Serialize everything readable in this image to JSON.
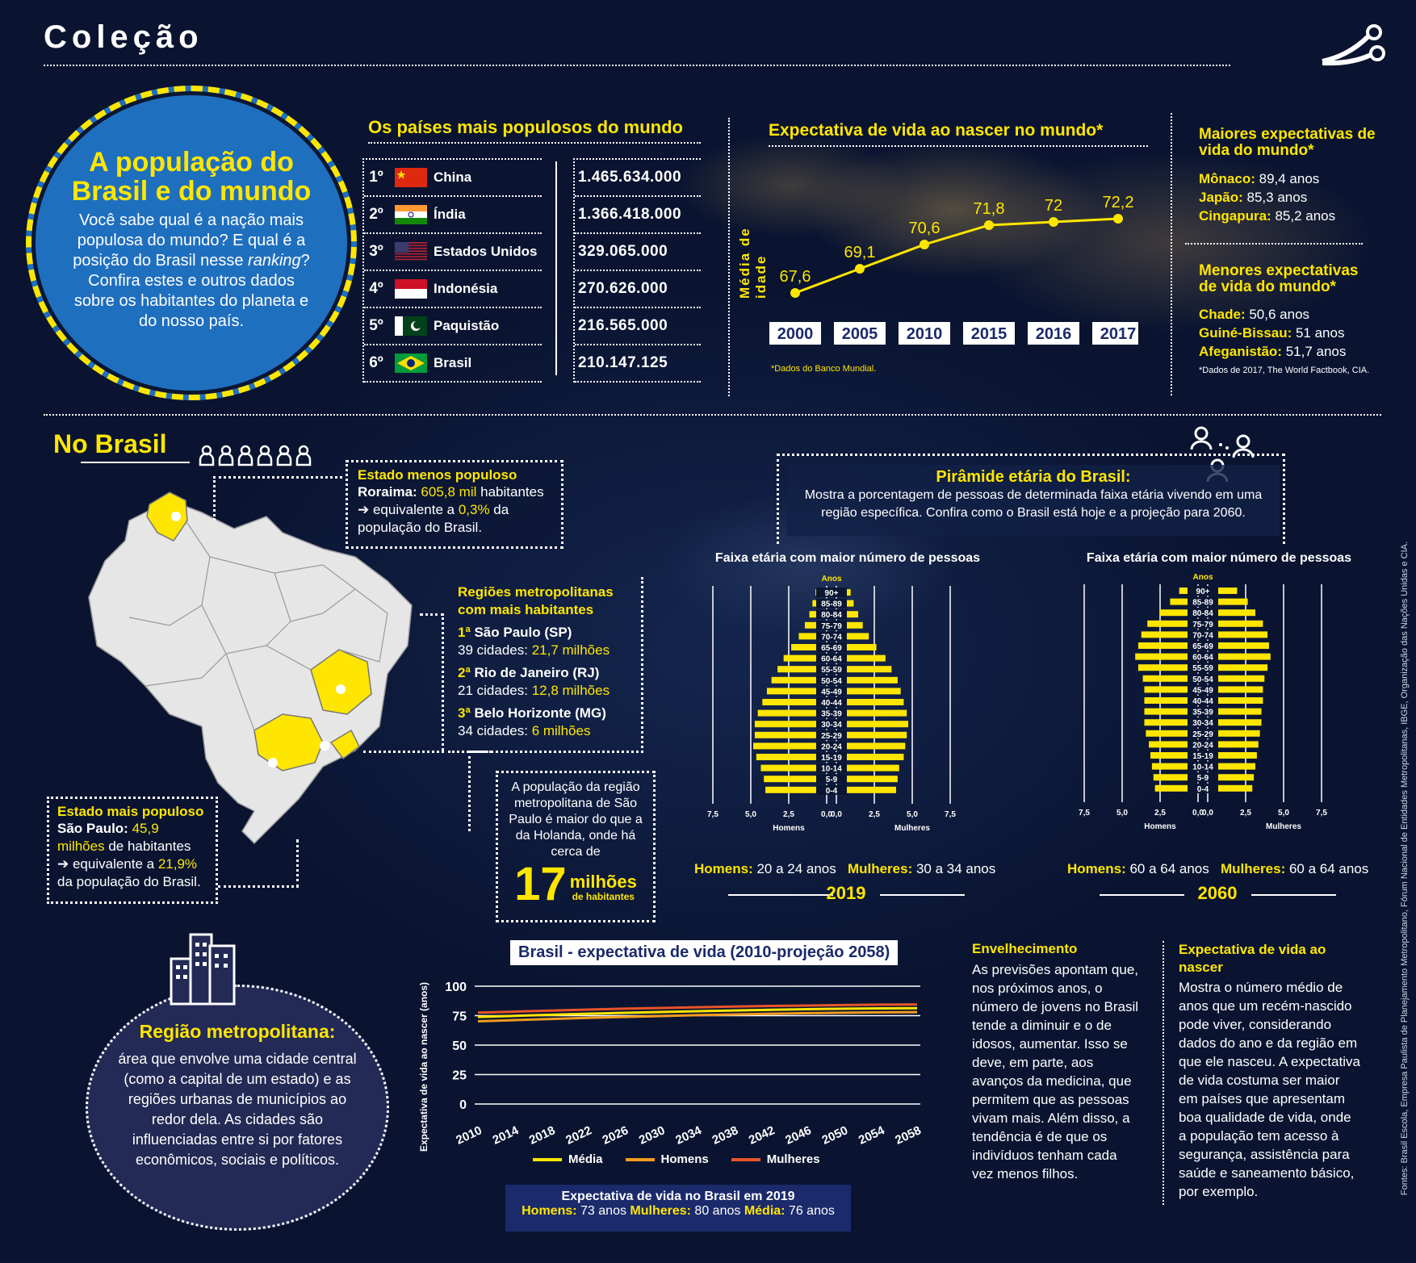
{
  "header": {
    "title": "Coleção"
  },
  "intro": {
    "title_line1": "A população do",
    "title_line2": "Brasil e do mundo",
    "text_part1": "Você sabe qual é a nação mais populosa do mundo? E qual é a posição do Brasil nesse ",
    "text_italic": "ranking",
    "text_part2": "? Confira estes e outros dados sobre os habitantes do planeta e do nosso país."
  },
  "populous": {
    "title": "Os países mais populosos do mundo",
    "rows": [
      {
        "rank": "1º",
        "country": "China",
        "value": "1.465.634.000",
        "flag": "china-flag"
      },
      {
        "rank": "2º",
        "country": "Índia",
        "value": "1.366.418.000",
        "flag": "india-flag"
      },
      {
        "rank": "3º",
        "country": "Estados Unidos",
        "value": "329.065.000",
        "flag": "usa-flag"
      },
      {
        "rank": "4º",
        "country": "Indonésia",
        "value": "270.626.000",
        "flag": "indonesia-flag"
      },
      {
        "rank": "5º",
        "country": "Paquistão",
        "value": "216.565.000",
        "flag": "pakistan-flag"
      },
      {
        "rank": "6º",
        "country": "Brasil",
        "value": "210.147.125",
        "flag": "brazil-flag"
      }
    ]
  },
  "life_world": {
    "title": "Expectativa de vida ao nascer no mundo*",
    "ylabel": "Média de idade",
    "footnote": "*Dados do Banco Mundial."
  },
  "extremes": {
    "max_title": "Maiores expectativas de vida do mundo*",
    "max_items": [
      {
        "country": "Mônaco:",
        "value": "89,4 anos"
      },
      {
        "country": "Japão:",
        "value": "85,3 anos"
      },
      {
        "country": "Cingapura:",
        "value": "85,2 anos"
      }
    ],
    "min_title": "Menores expectativas de vida do mundo*",
    "min_items": [
      {
        "country": "Chade:",
        "value": "50,6 anos"
      },
      {
        "country": "Guiné-Bissau:",
        "value": "51 anos"
      },
      {
        "country": "Afeganistão:",
        "value": "51,7 anos"
      }
    ],
    "footnote": "*Dados de 2017, The World Factbook, CIA."
  },
  "brasil": {
    "title": "No Brasil",
    "least": {
      "title": "Estado menos populoso",
      "state": "Roraima:",
      "value": "605,8 mil",
      "text1": " habitantes",
      "text2": "➔ equivalente a ",
      "pct": "0,3%",
      "text3": " da",
      "text4": "população do Brasil."
    },
    "most": {
      "title": "Estado mais populoso",
      "state": "São Paulo:",
      "value1": "45,9",
      "value2": "milhões",
      "text1": " de habitantes",
      "text2": "➔ equivalente a ",
      "pct": "21,9%",
      "text3": "da população do Brasil."
    },
    "metro": {
      "title_line1": "Regiões metropolitanas",
      "title_line2": "com mais habitantes",
      "items": [
        {
          "rank": "1ª",
          "name": " São Paulo (SP)",
          "cities": " 39 cidades: ",
          "pop": "21,7 milhões"
        },
        {
          "rank": "2ª",
          "name": " Rio de Janeiro (RJ)",
          "cities": "21 cidades: ",
          "pop": "12,8 milhões"
        },
        {
          "rank": "3ª",
          "name": " Belo Horizonte (MG)",
          "cities": "34 cidades: ",
          "pop": "6 milhões"
        }
      ]
    },
    "sp_note": {
      "text": "A população da região metropolitana de São Paulo é maior do que a da Holanda, onde há cerca de",
      "big": "17",
      "unit": "milhões",
      "unit2": "de habitantes"
    }
  },
  "metro_def": {
    "title": "Região metropolitana:",
    "text": "área que envolve uma cidade central (como a capital de um estado) e as regiões urbanas de municípios ao redor dela. As cidades são influenciadas entre si por fatores econômicos, sociais e políticos."
  },
  "pyramid": {
    "title": "Pirâmide etária do Brasil:",
    "subtitle": "Mostra a porcentagem de pessoas de determinada faixa etária vivendo em uma região específica. Confira como o Brasil está hoje e a projeção para 2060.",
    "left": {
      "heading": "Faixa etária com maior número de pessoas",
      "year": "2019",
      "men_label": "Homens:",
      "men_value": " 20 a 24 anos",
      "women_label": "Mulheres:",
      "women_value": " 30 a 34 anos"
    },
    "right": {
      "heading": "Faixa etária com maior número de pessoas",
      "year": "2060",
      "men_label": "Homens:",
      "men_value": " 60 a 64 anos",
      "women_label": "Mulheres:",
      "women_value": " 60 a 64 anos"
    },
    "axis_top": "Anos",
    "men": "Homens",
    "women": "Mulheres"
  },
  "brasil_life": {
    "title": "Brasil - expectativa de vida (2010-projeção 2058)",
    "ylabel": "Expectativa de vida ao nascer (anos)",
    "legend": [
      "Média",
      "Homens",
      "Mulheres"
    ],
    "box_title": "Expectativa de vida no Brasil em 2019",
    "box_men_label": "Homens:",
    "box_men": " 73 anos ",
    "box_women_label": "Mulheres:",
    "box_women": " 80 anos ",
    "box_avg_label": "Média:",
    "box_avg": " 76 anos"
  },
  "aging": {
    "title": "Envelhecimento",
    "text": "As previsões apontam que, nos próximos anos, o número de jovens no Brasil tende a diminuir e o de idosos, aumentar. Isso se deve, em parte, aos avanços da medicina, que permitem que as pessoas vivam mais. Além disso, a tendência é de que os indivíduos tenham cada vez menos filhos."
  },
  "expect_def": {
    "title": "Expectativa de vida ao nascer",
    "text": "Mostra o número médio de anos que um recém-nascido pode viver, considerando dados do ano e da região em que ele nasceu. A expectativa de vida costuma ser maior em países que apresentam boa qualidade de vida, onde a população tem acesso à segurança, assistência para saúde e saneamento básico, por exemplo."
  },
  "sources": "Fontes: Brasil Escola, Empresa Paulista de Planejamento Metropolitano, Fórum Nacional de Entidades Metropolitanas, IBGE, Organização das Nações Unidas e CIA.",
  "colors": {
    "accent": "#ffe600",
    "circle": "#1f6fbf",
    "navy": "#1b2a6b",
    "orange": "#f39c1f",
    "red": "#e8542a"
  },
  "chart_data": [
    {
      "type": "line",
      "title": "Expectativa de vida ao nascer no mundo*",
      "ylabel": "Média de idade",
      "x": [
        "2000",
        "2005",
        "2010",
        "2015",
        "2016",
        "2017"
      ],
      "values": [
        67.6,
        69.1,
        70.6,
        71.8,
        72,
        72.2
      ],
      "value_labels": [
        "67,6",
        "69,1",
        "70,6",
        "71,8",
        "72",
        "72,2"
      ]
    },
    {
      "type": "line",
      "title": "Brasil - expectativa de vida (2010-projeção 2058)",
      "ylabel": "Expectativa de vida ao nascer (anos)",
      "ylim": [
        0,
        100
      ],
      "yticks": [
        "0",
        "25",
        "50",
        "75",
        "100"
      ],
      "x": [
        "2010",
        "2014",
        "2018",
        "2022",
        "2026",
        "2030",
        "2034",
        "2038",
        "2042",
        "2046",
        "2050",
        "2054",
        "2058"
      ],
      "series": [
        {
          "name": "Média",
          "color": "#ffe600",
          "values": [
            73.9,
            74.8,
            75.8,
            76.6,
            77.4,
            78.1,
            78.8,
            79.4,
            80.0,
            80.5,
            80.9,
            81.2,
            81.3
          ]
        },
        {
          "name": "Homens",
          "color": "#f39c1f",
          "values": [
            70.2,
            71.2,
            72.2,
            73.1,
            73.9,
            74.7,
            75.4,
            76.0,
            76.6,
            77.1,
            77.5,
            77.8,
            78.0
          ]
        },
        {
          "name": "Mulheres",
          "color": "#e8542a",
          "values": [
            77.6,
            78.4,
            79.3,
            80.1,
            80.9,
            81.5,
            82.1,
            82.7,
            83.2,
            83.6,
            84.0,
            84.3,
            84.5
          ]
        }
      ]
    },
    {
      "type": "bar",
      "title": "Pirâmide etária 2019",
      "categories": [
        "90+",
        "85-89",
        "80-84",
        "75-79",
        "70-74",
        "65-69",
        "60-64",
        "55-59",
        "50-54",
        "45-49",
        "40-44",
        "35-39",
        "30-34",
        "25-29",
        "20-24",
        "15-19",
        "10-14",
        "5-9",
        "0-4"
      ],
      "xticks": [
        "7,5",
        "5,0",
        "2,5",
        "0,0",
        "0,0",
        "2,5",
        "5,0",
        "7,5"
      ],
      "series": [
        {
          "name": "Homens",
          "values": [
            0.1,
            0.3,
            0.5,
            0.8,
            1.2,
            1.7,
            2.2,
            2.6,
            3.0,
            3.3,
            3.6,
            3.9,
            4.1,
            4.1,
            4.2,
            4.0,
            3.7,
            3.5,
            3.4
          ]
        },
        {
          "name": "Mulheres",
          "values": [
            0.3,
            0.5,
            0.8,
            1.1,
            1.5,
            2.0,
            2.6,
            3.0,
            3.4,
            3.6,
            3.8,
            4.0,
            4.1,
            4.0,
            3.9,
            3.8,
            3.5,
            3.4,
            3.3
          ]
        }
      ]
    },
    {
      "type": "bar",
      "title": "Pirâmide etária 2060",
      "categories": [
        "90+",
        "85-89",
        "80-84",
        "75-79",
        "70-74",
        "65-69",
        "60-64",
        "55-59",
        "50-54",
        "45-49",
        "40-44",
        "35-39",
        "30-34",
        "25-29",
        "20-24",
        "15-19",
        "10-14",
        "5-9",
        "0-4"
      ],
      "xticks": [
        "7,5",
        "5,0",
        "2,5",
        "0,0",
        "0,0",
        "2,5",
        "5,0",
        "7,5"
      ],
      "series": [
        {
          "name": "Homens",
          "values": [
            0.6,
            1.2,
            1.9,
            2.7,
            3.1,
            3.3,
            3.5,
            3.3,
            3.0,
            2.9,
            2.9,
            2.9,
            2.9,
            2.8,
            2.6,
            2.5,
            2.4,
            2.3,
            2.2
          ]
        },
        {
          "name": "Mulheres",
          "values": [
            1.3,
            2.0,
            2.5,
            3.0,
            3.3,
            3.4,
            3.5,
            3.3,
            3.1,
            3.0,
            3.0,
            2.9,
            2.9,
            2.8,
            2.7,
            2.6,
            2.5,
            2.4,
            2.3
          ]
        }
      ]
    }
  ]
}
